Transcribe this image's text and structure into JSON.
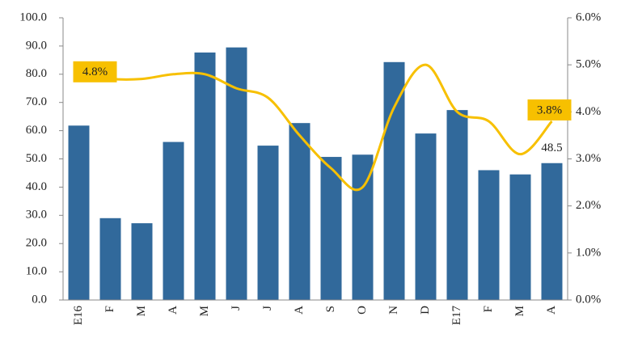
{
  "chart_data": {
    "type": "bar",
    "categories": [
      "E16",
      "F",
      "M",
      "A",
      "M",
      "J",
      "J",
      "A",
      "S",
      "O",
      "N",
      "D",
      "E17",
      "F",
      "M",
      "A"
    ],
    "series": [
      {
        "type": "bar",
        "color": "#31699b",
        "values": [
          61.8,
          29.0,
          27.2,
          56.0,
          87.7,
          89.5,
          54.7,
          62.7,
          50.7,
          51.5,
          84.3,
          59.0,
          67.3,
          46.0,
          44.5,
          48.5
        ],
        "value_labels": [
          null,
          null,
          null,
          null,
          null,
          null,
          null,
          null,
          null,
          null,
          null,
          null,
          null,
          null,
          null,
          "48.5"
        ]
      },
      {
        "type": "line",
        "axis": "y2",
        "color": "#f7c000",
        "values": [
          4.8,
          4.7,
          4.7,
          4.8,
          4.8,
          4.5,
          4.3,
          3.5,
          2.8,
          2.4,
          4.1,
          5.0,
          4.0,
          3.8,
          3.1,
          3.8
        ],
        "value_labels": [
          "4.8%",
          null,
          null,
          null,
          null,
          null,
          null,
          null,
          null,
          null,
          null,
          null,
          null,
          null,
          null,
          "3.8%"
        ]
      }
    ],
    "ylim": [
      0,
      100
    ],
    "yticks": [
      {
        "value": 0,
        "label": "0.0"
      },
      {
        "value": 10,
        "label": "10.0"
      },
      {
        "value": 20,
        "label": "20.0"
      },
      {
        "value": 30,
        "label": "30.0"
      },
      {
        "value": 40,
        "label": "40.0"
      },
      {
        "value": 50,
        "label": "50.0"
      },
      {
        "value": 60,
        "label": "60.0"
      },
      {
        "value": 70,
        "label": "70.0"
      },
      {
        "value": 80,
        "label": "80.0"
      },
      {
        "value": 90,
        "label": "90.0"
      },
      {
        "value": 100,
        "label": "100.0"
      }
    ],
    "y2lim": [
      0,
      6
    ],
    "y2ticks": [
      {
        "value": 0,
        "label": "0.0%"
      },
      {
        "value": 1,
        "label": "1.0%"
      },
      {
        "value": 2,
        "label": "2.0%"
      },
      {
        "value": 3,
        "label": "3.0%"
      },
      {
        "value": 4,
        "label": "4.0%"
      },
      {
        "value": 5,
        "label": "5.0%"
      },
      {
        "value": 6,
        "label": "6.0%"
      }
    ]
  }
}
